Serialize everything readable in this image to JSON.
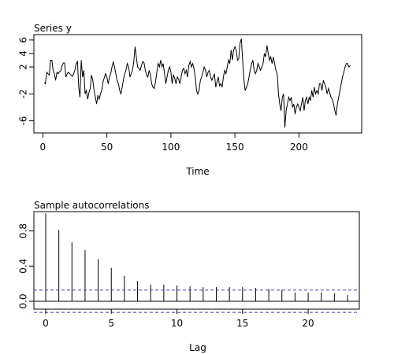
{
  "chart_data": [
    {
      "type": "line",
      "title": "Series y",
      "xlabel": "Time",
      "ylabel": "",
      "xlim": [
        -7,
        249
      ],
      "ylim": [
        -7.8,
        6.8
      ],
      "x_ticks": [
        0,
        50,
        100,
        150,
        200
      ],
      "y_ticks": [
        -6,
        -2,
        2,
        4,
        6
      ],
      "grid": false,
      "line_color": "#000000",
      "series": [
        {
          "x": [
            1,
            2,
            3,
            4,
            5,
            6,
            7,
            8,
            9,
            10,
            11,
            12,
            13,
            14,
            15,
            16,
            17,
            18,
            19,
            20,
            21,
            22,
            23,
            24,
            25,
            26,
            27,
            28,
            29,
            30,
            31,
            32,
            33,
            34,
            35,
            36,
            37,
            38,
            39,
            40,
            41,
            42,
            43,
            44,
            45,
            46,
            47,
            48,
            49,
            50,
            51,
            52,
            53,
            54,
            55,
            56,
            57,
            58,
            59,
            60,
            61,
            62,
            63,
            64,
            65,
            66,
            67,
            68,
            69,
            70,
            71,
            72,
            73,
            74,
            75,
            76,
            77,
            78,
            79,
            80,
            81,
            82,
            83,
            84,
            85,
            86,
            87,
            88,
            89,
            90,
            91,
            92,
            93,
            94,
            95,
            96,
            97,
            98,
            99,
            100,
            101,
            102,
            103,
            104,
            105,
            106,
            107,
            108,
            109,
            110,
            111,
            112,
            113,
            114,
            115,
            116,
            117,
            118,
            119,
            120,
            121,
            122,
            123,
            124,
            125,
            126,
            127,
            128,
            129,
            130,
            131,
            132,
            133,
            134,
            135,
            136,
            137,
            138,
            139,
            140,
            141,
            142,
            143,
            144,
            145,
            146,
            147,
            148,
            149,
            150,
            151,
            152,
            153,
            154,
            155,
            156,
            157,
            158,
            159,
            160,
            161,
            162,
            163,
            164,
            165,
            166,
            167,
            168,
            169,
            170,
            171,
            172,
            173,
            174,
            175,
            176,
            177,
            178,
            179,
            180,
            181,
            182,
            183,
            184,
            185,
            186,
            187,
            188,
            189,
            190,
            191,
            192,
            193,
            194,
            195,
            196,
            197,
            198,
            199,
            200,
            201,
            202,
            203,
            204,
            205,
            206,
            207,
            208,
            209,
            210,
            211,
            212,
            213,
            214,
            215,
            216,
            217,
            218,
            219,
            220,
            221,
            222,
            223,
            224,
            225,
            226,
            227,
            228,
            229,
            230,
            231,
            232,
            233,
            234,
            235,
            236,
            237,
            238,
            239,
            240
          ],
          "values": [
            -0.3,
            -0.5,
            1.2,
            1.0,
            0.8,
            3.0,
            3.0,
            1.5,
            1.0,
            0.0,
            1.2,
            1.0,
            1.3,
            1.4,
            2.2,
            2.6,
            2.6,
            0.5,
            1.0,
            1.2,
            1.0,
            0.8,
            0.6,
            1.0,
            1.5,
            2.5,
            2.8,
            -1.0,
            -2.5,
            3.0,
            0.5,
            1.5,
            -2.0,
            -1.5,
            -2.8,
            -1.8,
            -1.2,
            0.8,
            0.0,
            -1.5,
            -2.5,
            -3.5,
            -2.2,
            -2.8,
            -2.0,
            -1.5,
            -0.2,
            0.4,
            1.0,
            0.5,
            -0.5,
            0.5,
            1.0,
            2.0,
            2.8,
            2.0,
            1.0,
            0.0,
            -0.5,
            -1.5,
            -2.0,
            -1.0,
            0.2,
            1.0,
            1.6,
            2.5,
            2.0,
            0.5,
            1.0,
            1.5,
            2.8,
            5.0,
            3.5,
            2.0,
            1.8,
            1.5,
            2.2,
            2.8,
            2.6,
            1.5,
            0.8,
            0.5,
            1.5,
            0.8,
            -0.5,
            -1.0,
            -1.2,
            -0.2,
            1.2,
            2.5,
            2.0,
            3.0,
            2.0,
            2.5,
            1.0,
            -0.5,
            0.5,
            1.5,
            2.0,
            1.2,
            -0.5,
            0.8,
            0.3,
            -0.5,
            0.5,
            0.2,
            -0.5,
            0.5,
            1.5,
            1.8,
            1.0,
            1.5,
            0.5,
            2.2,
            2.8,
            2.0,
            2.5,
            1.8,
            0.5,
            -1.5,
            -2.0,
            -1.5,
            0.0,
            0.5,
            1.2,
            2.0,
            1.5,
            0.5,
            1.2,
            1.5,
            0.5,
            0.0,
            0.5,
            1.0,
            -1.0,
            -0.2,
            0.5,
            -0.8,
            -0.5,
            -1.0,
            0.5,
            1.5,
            1.0,
            2.0,
            3.0,
            2.5,
            4.5,
            3.0,
            4.5,
            5.0,
            4.5,
            3.0,
            3.2,
            5.5,
            6.2,
            3.0,
            0.2,
            -1.5,
            -1.0,
            -0.5,
            0.5,
            1.5,
            2.5,
            3.0,
            1.5,
            1.0,
            1.5,
            2.5,
            2.0,
            1.5,
            2.0,
            2.5,
            4.0,
            3.5,
            5.2,
            4.0,
            3.0,
            3.5,
            2.5,
            3.5,
            2.5,
            1.5,
            1.0,
            -2.0,
            -3.5,
            -4.5,
            -2.5,
            -2.0,
            -7.0,
            -4.5,
            -3.5,
            -2.5,
            -3.0,
            -2.5,
            -4.0,
            -3.5,
            -5.0,
            -4.0,
            -3.5,
            -4.0,
            -4.5,
            -3.5,
            -2.5,
            -4.5,
            -3.0,
            -2.5,
            -3.5,
            -2.5,
            -3.0,
            -1.5,
            -2.5,
            -1.0,
            -2.0,
            -1.5,
            -2.0,
            -0.5,
            -0.5,
            -1.5,
            0.0,
            -0.5,
            -1.0,
            -2.0,
            -1.2,
            -1.8,
            -2.5,
            -2.8,
            -3.5,
            -4.5,
            -5.2,
            -3.5,
            -2.5,
            -1.5,
            -0.5,
            0.5,
            1.2,
            2.0,
            2.5,
            2.5,
            2.0,
            2.2
          ]
        }
      ]
    },
    {
      "type": "bar",
      "title": "Sample autocorrelations",
      "xlabel": "Lag",
      "ylabel": "",
      "xlim": [
        -0.9,
        23.9
      ],
      "ylim": [
        -0.09,
        1.02
      ],
      "x_ticks": [
        0,
        5,
        10,
        15,
        20
      ],
      "y_ticks": [
        0.0,
        0.4,
        0.8
      ],
      "y_tick_labels": [
        "0.0",
        "0.4",
        "0.8"
      ],
      "grid": false,
      "confidence_band": 0.127,
      "band_color": "#3a3aa8",
      "categories": [
        0,
        1,
        2,
        3,
        4,
        5,
        6,
        7,
        8,
        9,
        10,
        11,
        12,
        13,
        14,
        15,
        16,
        17,
        18,
        19,
        20,
        21,
        22,
        23
      ],
      "values": [
        1.0,
        0.81,
        0.67,
        0.58,
        0.48,
        0.38,
        0.29,
        0.23,
        0.19,
        0.19,
        0.18,
        0.17,
        0.16,
        0.16,
        0.16,
        0.16,
        0.15,
        0.14,
        0.13,
        0.1,
        0.1,
        0.1,
        0.09,
        0.07
      ]
    }
  ]
}
